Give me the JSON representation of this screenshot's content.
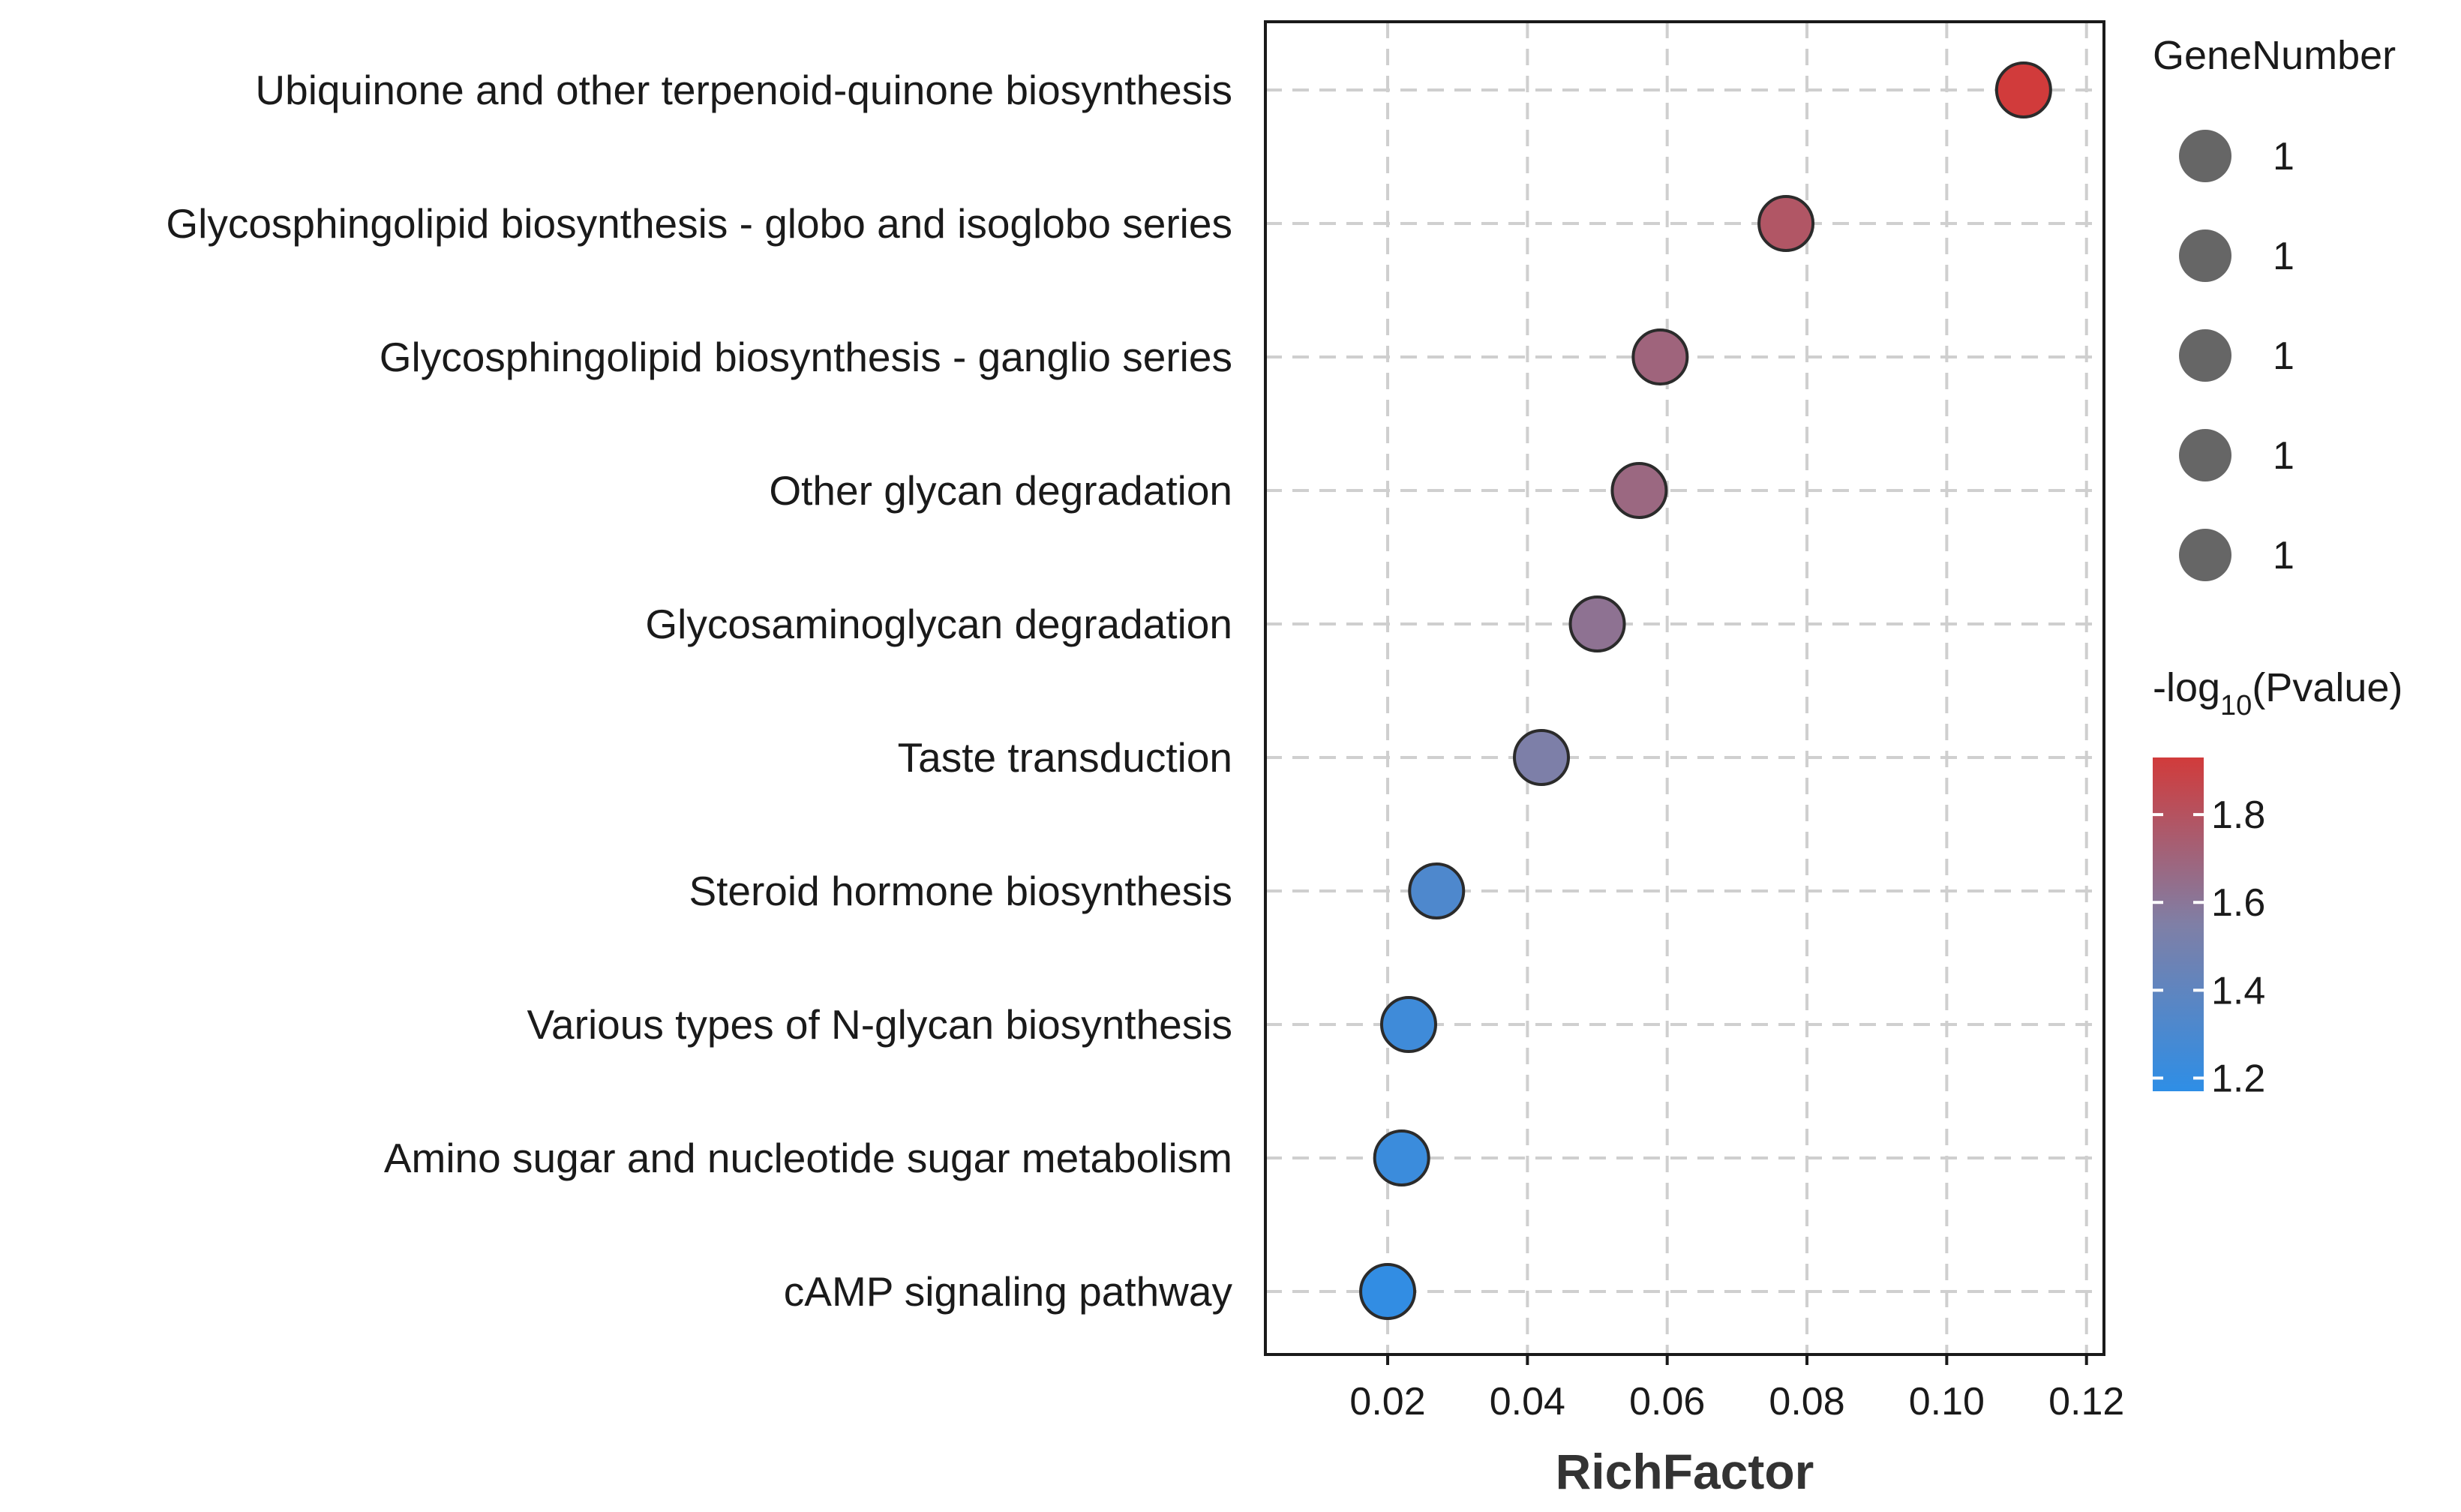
{
  "chart_data": {
    "type": "scatter",
    "title": "",
    "xlabel": "RichFactor",
    "ylabel": "",
    "xlim": [
      0.0025,
      0.1225
    ],
    "xticks": [
      0.02,
      0.04,
      0.06,
      0.08,
      0.1,
      0.12
    ],
    "xtick_labels": [
      "0.02",
      "0.04",
      "0.06",
      "0.08",
      "0.10",
      "0.12"
    ],
    "grid": true,
    "categories": [
      "Ubiquinone and other terpenoid-quinone biosynthesis",
      "Glycosphingolipid biosynthesis - globo and isoglobo series",
      "Glycosphingolipid biosynthesis - ganglio series",
      "Other glycan degradation",
      "Glycosaminoglycan degradation",
      "Taste transduction",
      "Steroid hormone biosynthesis",
      "Various types of N-glycan biosynthesis",
      "Amino sugar and nucleotide sugar metabolism",
      "cAMP signaling pathway"
    ],
    "rich_factor": [
      0.111,
      0.077,
      0.059,
      0.056,
      0.05,
      0.042,
      0.027,
      0.023,
      0.022,
      0.02
    ],
    "gene_number": [
      1,
      1,
      1,
      1,
      1,
      1,
      1,
      1,
      1,
      1
    ],
    "neg_log10_pvalue": [
      1.93,
      1.78,
      1.7,
      1.68,
      1.62,
      1.54,
      1.32,
      1.25,
      1.23,
      1.19
    ],
    "size_legend": {
      "title": "GeneNumber",
      "entries": [
        "1",
        "1",
        "1",
        "1",
        "1"
      ],
      "color": "#666666"
    },
    "color_legend": {
      "title_prefix": "-log",
      "title_subscript": "10",
      "title_suffix": "(Pvalue)",
      "range": [
        1.17,
        1.93
      ],
      "ticks": [
        1.2,
        1.4,
        1.6,
        1.8
      ],
      "tick_labels": [
        "1.2",
        "1.4",
        "1.6",
        "1.8"
      ],
      "low_color": "#2e8ee6",
      "mid_color": "#7f7fa6",
      "high_color": "#d13b3b"
    }
  }
}
